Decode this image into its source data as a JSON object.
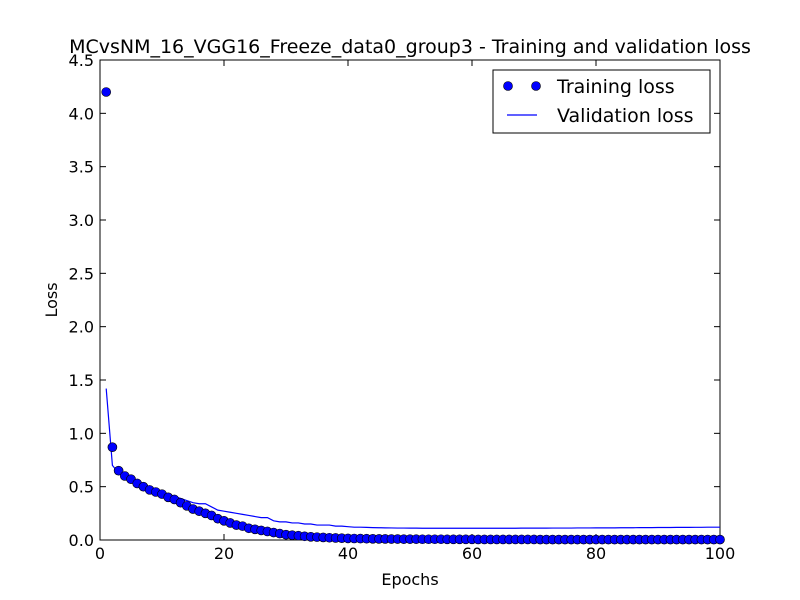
{
  "chart_data": {
    "type": "line",
    "title": "MCvsNM_16_VGG16_Freeze_data0_group3 - Training and validation loss",
    "xlabel": "Epochs",
    "ylabel": "Loss",
    "xlim": [
      0,
      100
    ],
    "ylim": [
      0,
      4.5
    ],
    "xticks": [
      0,
      20,
      40,
      60,
      80,
      100
    ],
    "yticks": [
      0.0,
      0.5,
      1.0,
      1.5,
      2.0,
      2.5,
      3.0,
      3.5,
      4.0,
      4.5
    ],
    "xtick_labels": [
      "0",
      "20",
      "40",
      "60",
      "80",
      "100"
    ],
    "ytick_labels": [
      "0.0",
      "0.5",
      "1.0",
      "1.5",
      "2.0",
      "2.5",
      "3.0",
      "3.5",
      "4.0",
      "4.5"
    ],
    "grid": false,
    "legend_position": "top-right",
    "colors": {
      "series": "#0000ff",
      "axis": "#000000",
      "background": "#ffffff"
    },
    "series": [
      {
        "name": "Training loss",
        "style": "markers",
        "x": [
          1,
          2,
          3,
          4,
          5,
          6,
          7,
          8,
          9,
          10,
          11,
          12,
          13,
          14,
          15,
          16,
          17,
          18,
          19,
          20,
          21,
          22,
          23,
          24,
          25,
          26,
          27,
          28,
          29,
          30,
          31,
          32,
          33,
          34,
          35,
          36,
          37,
          38,
          39,
          40,
          41,
          42,
          43,
          44,
          45,
          46,
          47,
          48,
          49,
          50,
          51,
          52,
          53,
          54,
          55,
          56,
          57,
          58,
          59,
          60,
          61,
          62,
          63,
          64,
          65,
          66,
          67,
          68,
          69,
          70,
          71,
          72,
          73,
          74,
          75,
          76,
          77,
          78,
          79,
          80,
          81,
          82,
          83,
          84,
          85,
          86,
          87,
          88,
          89,
          90,
          91,
          92,
          93,
          94,
          95,
          96,
          97,
          98,
          99,
          100
        ],
        "values": [
          4.2,
          0.87,
          0.65,
          0.6,
          0.57,
          0.53,
          0.5,
          0.47,
          0.45,
          0.43,
          0.4,
          0.38,
          0.35,
          0.32,
          0.29,
          0.27,
          0.25,
          0.23,
          0.2,
          0.18,
          0.16,
          0.14,
          0.13,
          0.11,
          0.1,
          0.09,
          0.08,
          0.07,
          0.06,
          0.05,
          0.045,
          0.04,
          0.035,
          0.03,
          0.027,
          0.024,
          0.021,
          0.019,
          0.017,
          0.015,
          0.014,
          0.013,
          0.012,
          0.011,
          0.01,
          0.01,
          0.009,
          0.009,
          0.008,
          0.008,
          0.008,
          0.007,
          0.007,
          0.007,
          0.007,
          0.006,
          0.006,
          0.006,
          0.006,
          0.006,
          0.005,
          0.005,
          0.005,
          0.005,
          0.005,
          0.005,
          0.005,
          0.005,
          0.005,
          0.005,
          0.004,
          0.004,
          0.004,
          0.004,
          0.004,
          0.004,
          0.004,
          0.004,
          0.004,
          0.004,
          0.004,
          0.004,
          0.004,
          0.004,
          0.004,
          0.004,
          0.004,
          0.004,
          0.004,
          0.004,
          0.004,
          0.004,
          0.004,
          0.004,
          0.004,
          0.004,
          0.004,
          0.004,
          0.004,
          0.004
        ]
      },
      {
        "name": "Validation loss",
        "style": "line",
        "x": [
          1,
          2,
          3,
          4,
          5,
          6,
          7,
          8,
          9,
          10,
          11,
          12,
          13,
          14,
          15,
          16,
          17,
          18,
          19,
          20,
          21,
          22,
          23,
          24,
          25,
          26,
          27,
          28,
          29,
          30,
          31,
          32,
          33,
          34,
          35,
          36,
          37,
          38,
          39,
          40,
          41,
          42,
          43,
          44,
          45,
          46,
          47,
          48,
          49,
          50,
          51,
          52,
          53,
          54,
          55,
          56,
          57,
          58,
          59,
          60,
          61,
          62,
          63,
          64,
          65,
          66,
          67,
          68,
          69,
          70,
          71,
          72,
          73,
          74,
          75,
          76,
          77,
          78,
          79,
          80,
          81,
          82,
          83,
          84,
          85,
          86,
          87,
          88,
          89,
          90,
          91,
          92,
          93,
          94,
          95,
          96,
          97,
          98,
          99,
          100
        ],
        "values": [
          1.42,
          0.7,
          0.63,
          0.59,
          0.56,
          0.54,
          0.51,
          0.49,
          0.47,
          0.45,
          0.43,
          0.41,
          0.39,
          0.37,
          0.35,
          0.34,
          0.34,
          0.31,
          0.28,
          0.27,
          0.26,
          0.25,
          0.24,
          0.23,
          0.22,
          0.21,
          0.21,
          0.18,
          0.17,
          0.17,
          0.16,
          0.16,
          0.15,
          0.15,
          0.14,
          0.14,
          0.14,
          0.13,
          0.13,
          0.125,
          0.12,
          0.12,
          0.118,
          0.116,
          0.115,
          0.114,
          0.113,
          0.112,
          0.112,
          0.111,
          0.111,
          0.11,
          0.11,
          0.11,
          0.11,
          0.11,
          0.11,
          0.11,
          0.11,
          0.11,
          0.11,
          0.11,
          0.11,
          0.11,
          0.11,
          0.11,
          0.11,
          0.111,
          0.111,
          0.111,
          0.111,
          0.111,
          0.112,
          0.112,
          0.112,
          0.112,
          0.113,
          0.113,
          0.113,
          0.114,
          0.114,
          0.114,
          0.114,
          0.115,
          0.115,
          0.115,
          0.116,
          0.116,
          0.116,
          0.117,
          0.117,
          0.117,
          0.118,
          0.118,
          0.118,
          0.119,
          0.119,
          0.12,
          0.12,
          0.12
        ]
      }
    ]
  }
}
